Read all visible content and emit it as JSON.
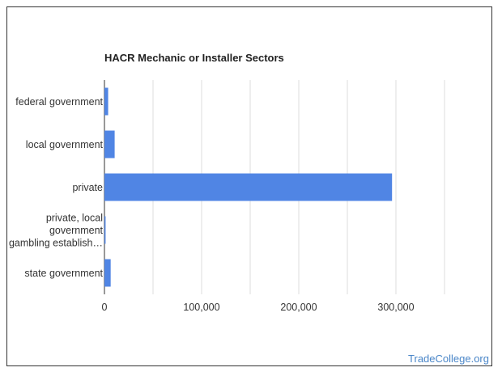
{
  "chart_data": {
    "type": "bar",
    "orientation": "horizontal",
    "title": "HACR Mechanic or Installer Sectors",
    "categories": [
      [
        "federal government"
      ],
      [
        "local government"
      ],
      [
        "private"
      ],
      [
        "private, local",
        "government",
        "gambling establish…"
      ],
      [
        "state government"
      ]
    ],
    "values": [
      3800,
      10500,
      296000,
      1200,
      6400
    ],
    "xlim": [
      0,
      350000
    ],
    "xticks": [
      0,
      100000,
      200000,
      300000
    ],
    "xtick_labels": [
      "0",
      "100,000",
      "200,000",
      "300,000"
    ],
    "bar_color": "#5085e4",
    "gridlines": true
  },
  "footer": {
    "source": "TradeCollege.org"
  }
}
